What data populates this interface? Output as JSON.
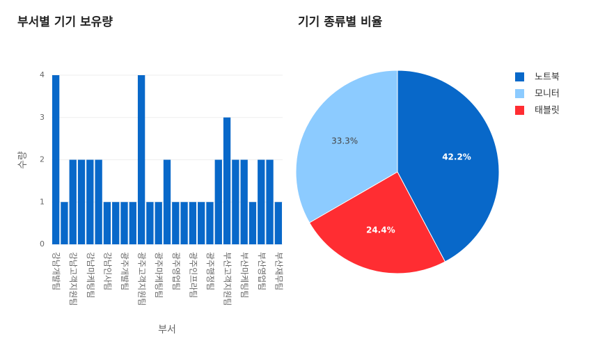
{
  "chart_data": [
    {
      "type": "bar",
      "title": "부서별 기기 보유량",
      "x_label": "부서",
      "y_label": "수량",
      "color": "#0868c9",
      "categories": [
        "강남개발팀",
        null,
        "강남고객지원팀",
        null,
        "강남마케팅팀",
        null,
        "강남인사팀",
        null,
        "광주개발팀",
        null,
        "광주고객지원팀",
        null,
        "광주마케팅팀",
        null,
        "광주영업팀",
        null,
        "광주인프라팀",
        null,
        "광주행정팀",
        null,
        "부산고객지원팀",
        null,
        "부산마케팅팀",
        null,
        "부산영업팀",
        null,
        "부산재무팀"
      ],
      "values": [
        4,
        1,
        2,
        2,
        2,
        2,
        1,
        1,
        1,
        1,
        4,
        1,
        1,
        2,
        1,
        1,
        1,
        1,
        1,
        2,
        3,
        2,
        2,
        1,
        2,
        2,
        1
      ],
      "ylim": [
        0,
        4
      ],
      "yticks": [
        0,
        1,
        2,
        3,
        4
      ],
      "grid": true
    },
    {
      "type": "pie",
      "title": "기기 종류별 비율",
      "direction": "counterclockwise",
      "categories": [
        "노트북",
        "모니터",
        "태블릿"
      ],
      "values": [
        42.2,
        33.3,
        24.4
      ],
      "value_labels": [
        "42.2%",
        "33.3%",
        "24.4%"
      ],
      "colors": [
        "#0868c9",
        "#8ccbff",
        "#ff2d32"
      ],
      "legend": "top-right"
    }
  ]
}
